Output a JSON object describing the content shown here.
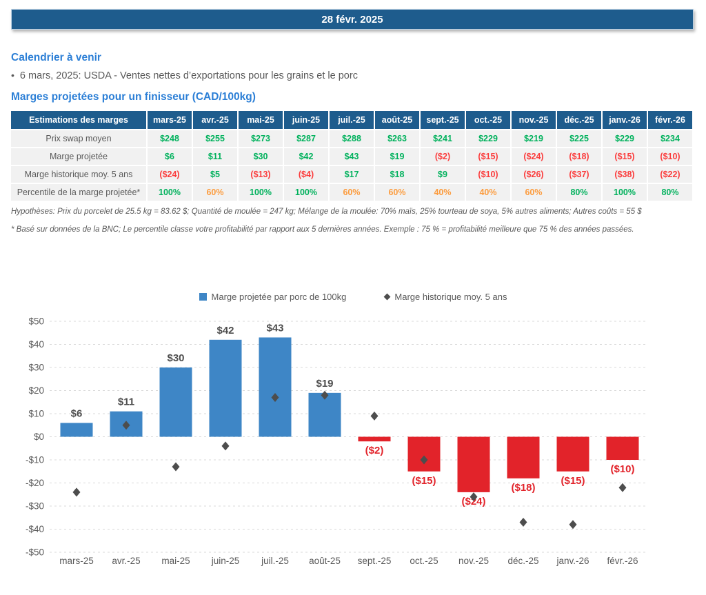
{
  "banner": {
    "date": "28 févr. 2025"
  },
  "calendar": {
    "title": "Calendrier à venir",
    "bullet": "•",
    "items": [
      "6 mars, 2025: USDA - Ventes nettes d’exportations pour les grains et le porc"
    ]
  },
  "margins": {
    "title": "Marges projetées pour un finisseur (CAD/100kg)"
  },
  "table": {
    "header": [
      "Estimations des marges",
      "mars-25",
      "avr.-25",
      "mai-25",
      "juin-25",
      "juil.-25",
      "août-25",
      "sept.-25",
      "oct.-25",
      "nov.-25",
      "déc.-25",
      "janv.-26",
      "févr.-26"
    ],
    "rows": [
      {
        "label": "Prix swap moyen",
        "values": [
          "$248",
          "$255",
          "$273",
          "$287",
          "$288",
          "$263",
          "$241",
          "$229",
          "$219",
          "$225",
          "$229",
          "$234"
        ],
        "colors": [
          "green",
          "green",
          "green",
          "green",
          "green",
          "green",
          "green",
          "green",
          "green",
          "green",
          "green",
          "green"
        ]
      },
      {
        "label": "Marge projetée",
        "values": [
          "$6",
          "$11",
          "$30",
          "$42",
          "$43",
          "$19",
          "($2)",
          "($15)",
          "($24)",
          "($18)",
          "($15)",
          "($10)"
        ],
        "colors": [
          "green",
          "green",
          "green",
          "green",
          "green",
          "green",
          "red",
          "red",
          "red",
          "red",
          "red",
          "red"
        ]
      },
      {
        "label": "Marge historique moy. 5 ans",
        "values": [
          "($24)",
          "$5",
          "($13)",
          "($4)",
          "$17",
          "$18",
          "$9",
          "($10)",
          "($26)",
          "($37)",
          "($38)",
          "($22)"
        ],
        "colors": [
          "red",
          "green",
          "red",
          "red",
          "green",
          "green",
          "green",
          "red",
          "red",
          "red",
          "red",
          "red"
        ]
      },
      {
        "label": "Percentile de la marge projetée*",
        "values": [
          "100%",
          "60%",
          "100%",
          "100%",
          "60%",
          "60%",
          "40%",
          "40%",
          "60%",
          "80%",
          "100%",
          "80%"
        ],
        "colors": [
          "green",
          "orange",
          "green",
          "green",
          "orange",
          "orange",
          "orange",
          "orange",
          "orange",
          "green",
          "green",
          "green"
        ]
      }
    ]
  },
  "notes": [
    "Hypothèses: Prix du porcelet de 25.5 kg = 83.62 $; Quantité de moulée = 247 kg; Mélange de la moulée: 70% maïs, 25% tourteau de soya, 5% autres aliments; Autres coûts = 55 $",
    "* Basé sur données de la BNC; Le percentile classe votre profitabilité par rapport aux 5 dernières années. Exemple : 75 % = profitabilité meilleure que 75 % des années passées."
  ],
  "chart_data": {
    "type": "bar",
    "title": "",
    "categories": [
      "mars-25",
      "avr.-25",
      "mai-25",
      "juin-25",
      "juil.-25",
      "août-25",
      "sept.-25",
      "oct.-25",
      "nov.-25",
      "déc.-25",
      "janv.-26",
      "févr.-26"
    ],
    "series": [
      {
        "name": "Marge projetée par porc de 100kg",
        "type": "bar",
        "values": [
          6,
          11,
          30,
          42,
          43,
          19,
          -2,
          -15,
          -24,
          -18,
          -15,
          -10
        ],
        "labels": [
          "$6",
          "$11",
          "$30",
          "$42",
          "$43",
          "$19",
          "($2)",
          "($15)",
          "($24)",
          "($18)",
          "($15)",
          "($10)"
        ]
      },
      {
        "name": "Marge historique moy. 5 ans",
        "type": "scatter-diamond",
        "values": [
          -24,
          5,
          -13,
          -4,
          17,
          18,
          9,
          -10,
          -26,
          -37,
          -38,
          -22
        ]
      }
    ],
    "ylim": [
      -50,
      50
    ],
    "ytick_step": 10,
    "grid": "dashed",
    "legend_position": "top"
  },
  "colors": {
    "banner_blue": "#1E5C8D",
    "heading_blue": "#2C7FD6",
    "bar_positive": "#3E86C6",
    "bar_negative": "#E2232A",
    "diamond_gray": "#4d4d4d",
    "value_green": "#00B15C",
    "value_red": "#FB3C3C",
    "value_orange": "#FC9C3E",
    "text_gray": "#595959",
    "gridline_gray": "#D8D8D8"
  }
}
